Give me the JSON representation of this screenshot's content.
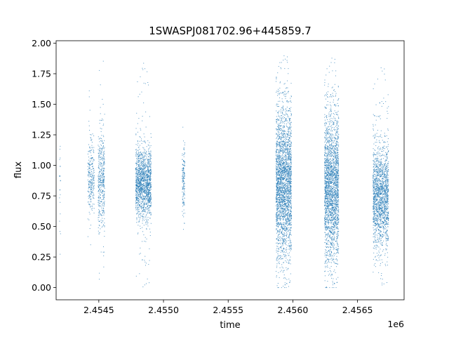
{
  "chart_data": {
    "type": "scatter",
    "title": "1SWASPJ081702.96+445859.7",
    "xlabel": "time",
    "ylabel": "flux",
    "x_offset_label": "1e6",
    "xlim": [
      2454170,
      2456860
    ],
    "ylim": [
      -0.1,
      2.02
    ],
    "x_ticks": [
      2454500,
      2455000,
      2455500,
      2456000,
      2456500
    ],
    "x_tick_labels": [
      "2.4545",
      "2.4550",
      "2.4555",
      "2.4560",
      "2.4565"
    ],
    "y_ticks": [
      0.0,
      0.25,
      0.5,
      0.75,
      1.0,
      1.25,
      1.5,
      1.75,
      2.0
    ],
    "y_tick_labels": [
      "0.00",
      "0.25",
      "0.50",
      "0.75",
      "1.00",
      "1.25",
      "1.50",
      "1.75",
      "2.00"
    ],
    "series_color": "#1f77b4",
    "grid": false,
    "legend": "none",
    "clusters": [
      {
        "x_range": [
          2454195,
          2454205
        ],
        "y_center": 0.85,
        "y_spread": 0.22,
        "y_min": 0.18,
        "y_max": 1.18,
        "count": 22
      },
      {
        "x_range": [
          2454415,
          2454465
        ],
        "y_center": 0.88,
        "y_spread": 0.16,
        "y_min": 0.35,
        "y_max": 1.65,
        "count": 260
      },
      {
        "x_range": [
          2454495,
          2454545
        ],
        "y_center": 0.86,
        "y_spread": 0.2,
        "y_min": 0.0,
        "y_max": 1.9,
        "count": 420
      },
      {
        "x_range": [
          2454785,
          2454905
        ],
        "y_center": 0.85,
        "y_spread": 0.14,
        "y_min": 0.0,
        "y_max": 1.84,
        "count": 1500
      },
      {
        "x_range": [
          2455145,
          2455165
        ],
        "y_center": 0.85,
        "y_spread": 0.14,
        "y_min": 0.3,
        "y_max": 1.32,
        "count": 150
      },
      {
        "x_range": [
          2455870,
          2455990
        ],
        "y_center": 0.85,
        "y_spread": 0.3,
        "y_min": 0.0,
        "y_max": 1.92,
        "count": 2600
      },
      {
        "x_range": [
          2456245,
          2456355
        ],
        "y_center": 0.82,
        "y_spread": 0.3,
        "y_min": 0.0,
        "y_max": 1.9,
        "count": 2300
      },
      {
        "x_range": [
          2456620,
          2456740
        ],
        "y_center": 0.74,
        "y_spread": 0.2,
        "y_min": 0.0,
        "y_max": 1.82,
        "count": 1700
      }
    ]
  }
}
